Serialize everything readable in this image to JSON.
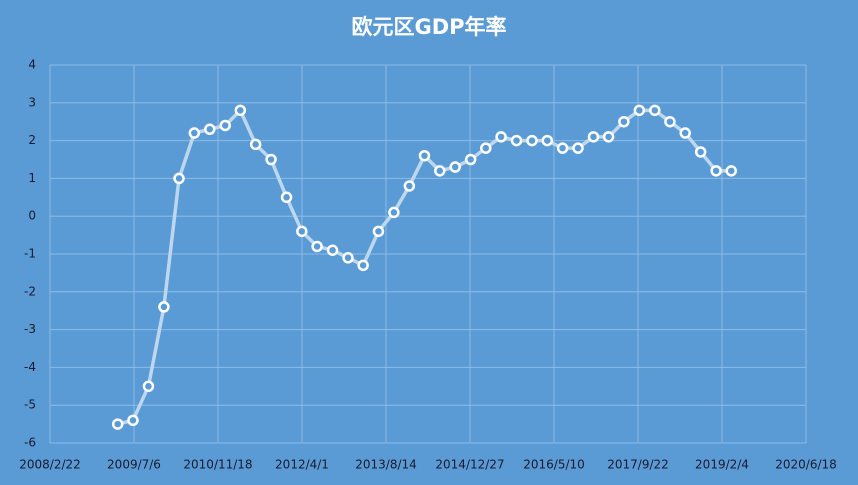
{
  "chart_data": {
    "type": "line",
    "title": "欧元区GDP年率",
    "x": [
      "2009-03-31",
      "2009-06-30",
      "2009-09-30",
      "2009-12-31",
      "2010-03-31",
      "2010-06-30",
      "2010-09-30",
      "2010-12-31",
      "2011-03-31",
      "2011-06-30",
      "2011-09-30",
      "2011-12-31",
      "2012-03-31",
      "2012-06-30",
      "2012-09-30",
      "2012-12-31",
      "2013-03-31",
      "2013-06-30",
      "2013-09-30",
      "2013-12-31",
      "2014-03-31",
      "2014-06-30",
      "2014-09-30",
      "2014-12-31",
      "2015-03-31",
      "2015-06-30",
      "2015-09-30",
      "2015-12-31",
      "2016-03-31",
      "2016-06-30",
      "2016-09-30",
      "2016-12-31",
      "2017-03-31",
      "2017-06-30",
      "2017-09-30",
      "2017-12-31",
      "2018-03-31",
      "2018-06-30",
      "2018-09-30",
      "2018-12-31",
      "2019-03-31"
    ],
    "series": [
      {
        "color": "#bdd7ee",
        "values": [
          -5.5,
          -5.4,
          -4.5,
          -2.4,
          1.0,
          2.2,
          2.3,
          2.4,
          2.8,
          1.9,
          1.5,
          0.5,
          -0.4,
          -0.8,
          -0.9,
          -1.1,
          -1.3,
          -0.4,
          0.1,
          0.8,
          1.6,
          1.2,
          1.3,
          1.5,
          1.8,
          2.1,
          2.0,
          2.0,
          2.0,
          1.8,
          1.8,
          2.1,
          2.1,
          2.5,
          2.8,
          2.8,
          2.5,
          2.2,
          1.7,
          1.2,
          1.2
        ]
      }
    ],
    "xlim": [
      "2008-02-22",
      "2020-06-18"
    ],
    "xticks": [
      {
        "value": "2008-02-22",
        "label": "2008/2/22"
      },
      {
        "value": "2009-07-06",
        "label": "2009/7/6"
      },
      {
        "value": "2010-11-18",
        "label": "2010/11/18"
      },
      {
        "value": "2012-04-01",
        "label": "2012/4/1"
      },
      {
        "value": "2013-08-14",
        "label": "2013/8/14"
      },
      {
        "value": "2014-12-27",
        "label": "2014/12/27"
      },
      {
        "value": "2016-05-10",
        "label": "2016/5/10"
      },
      {
        "value": "2017-09-22",
        "label": "2017/9/22"
      },
      {
        "value": "2019-02-04",
        "label": "2019/2/4"
      },
      {
        "value": "2020-06-18",
        "label": "2020/6/18"
      }
    ],
    "ylim": [
      -6,
      4
    ],
    "yticks": [
      -6,
      -5,
      -4,
      -3,
      -2,
      -1,
      0,
      1,
      2,
      3,
      4
    ],
    "grid": true
  }
}
